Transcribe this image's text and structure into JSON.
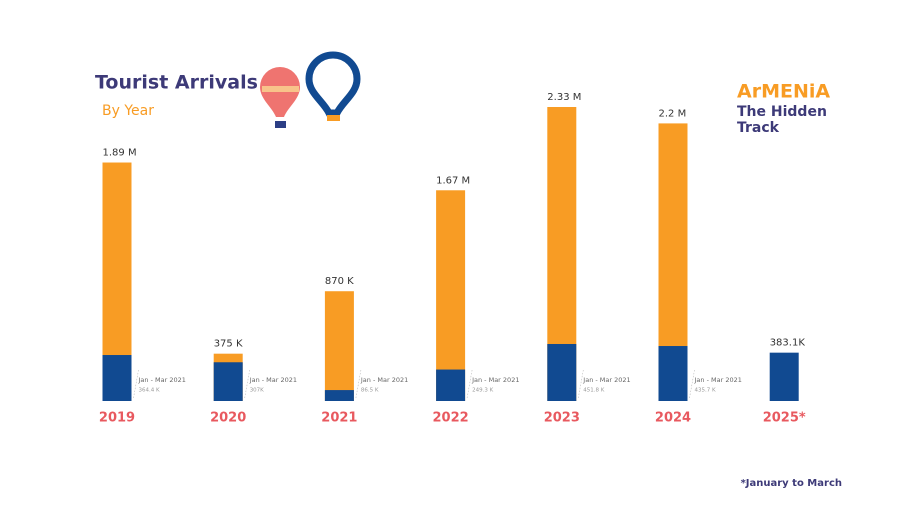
{
  "title": "Tourist Arrivals",
  "subtitle": "By Year",
  "brand": {
    "name": "ArMENiA",
    "tagline": [
      "The Hidden",
      "Track"
    ]
  },
  "footnote": "*January to March",
  "chart_data": {
    "type": "bar",
    "categories": [
      "2019",
      "2020",
      "2021",
      "2022",
      "2023",
      "2024",
      "2025*"
    ],
    "series": [
      {
        "color": "#f89c24",
        "values": [
          1890000,
          375000,
          870000,
          1670000,
          2330000,
          2200000,
          null
        ],
        "value_labels": [
          "1.89 M",
          "375 K",
          "870 K",
          "1.67 M",
          "2.33 M",
          "2.2 M",
          null
        ]
      },
      {
        "color": "#114a91",
        "values": [
          364400,
          307000,
          86500,
          249300,
          451800,
          435700,
          383100
        ],
        "value_labels": [
          "364.4 K",
          "307K",
          "86.5 K",
          "249.3 K",
          "451.8 K",
          "435.7 K",
          "383.1K"
        ]
      }
    ],
    "period_labels": [
      "Jan - Mar 2021",
      "Jan - Mar 2021",
      "Jan - Mar 2021",
      "Jan - Mar 2021",
      "Jan - Mar 2021",
      "Jan - Mar 2021",
      null
    ]
  }
}
